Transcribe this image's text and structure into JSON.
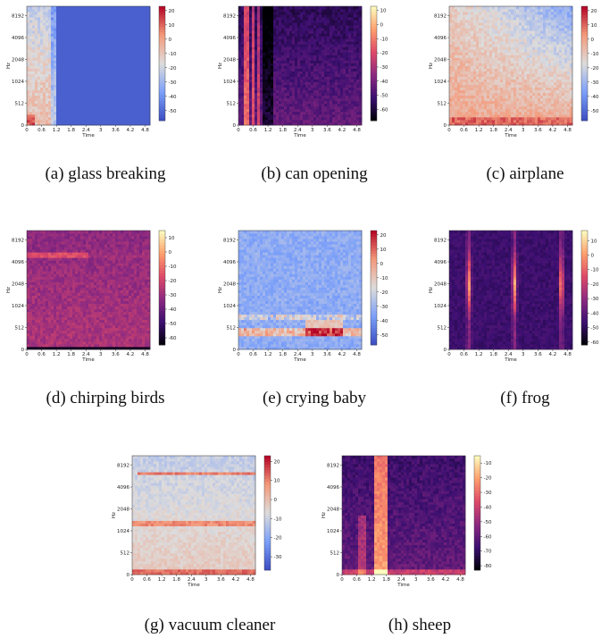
{
  "axes": {
    "xlabel": "Time",
    "ylabel": "Hz",
    "xlim": [
      0,
      5
    ],
    "xticks": [
      0,
      0.6,
      1.2,
      1.8,
      2.4,
      3,
      3.6,
      4.2,
      4.8
    ],
    "ylim": [
      0,
      11025
    ],
    "yticks": [
      0,
      512,
      1024,
      2048,
      4096,
      8192
    ],
    "y_scale": "symlog",
    "linthresh": 512
  },
  "panels": [
    {
      "caption": "(a) glass breaking",
      "colormap": "coolwarm",
      "clim": [
        -57,
        23
      ],
      "cticks": [
        -50,
        -40,
        -30,
        -20,
        -10,
        0,
        10,
        20
      ]
    },
    {
      "caption": "(b) can opening",
      "colormap": "magma",
      "clim": [
        -68,
        13
      ],
      "cticks": [
        -60,
        -50,
        -40,
        -30,
        -20,
        -10,
        0,
        10
      ]
    },
    {
      "caption": "(c) airplane",
      "colormap": "coolwarm",
      "clim": [
        -57,
        23
      ],
      "cticks": [
        -50,
        -40,
        -30,
        -20,
        -10,
        0,
        10,
        20
      ]
    },
    {
      "caption": "(d) chirping birds",
      "colormap": "magma",
      "clim": [
        -65,
        15
      ],
      "cticks": [
        -60,
        -50,
        -40,
        -30,
        -20,
        -10,
        0,
        10
      ]
    },
    {
      "caption": "(e) crying baby",
      "colormap": "coolwarm",
      "clim": [
        -57,
        23
      ],
      "cticks": [
        -50,
        -40,
        -30,
        -20,
        -10,
        0,
        10,
        20
      ]
    },
    {
      "caption": "(f) frog",
      "colormap": "magma",
      "clim": [
        -62,
        17
      ],
      "cticks": [
        -60,
        -50,
        -40,
        -30,
        -20,
        -10,
        0,
        10
      ]
    },
    {
      "caption": "(g) vacuum cleaner",
      "colormap": "coolwarm",
      "clim": [
        -37,
        23
      ],
      "cticks": [
        -30,
        -20,
        -10,
        0,
        10,
        20
      ]
    },
    {
      "caption": "(h) sheep",
      "colormap": "magma",
      "clim": [
        -83,
        -5
      ],
      "cticks": [
        -80,
        -70,
        -60,
        -50,
        -40,
        -30,
        -20,
        -10
      ]
    }
  ]
}
